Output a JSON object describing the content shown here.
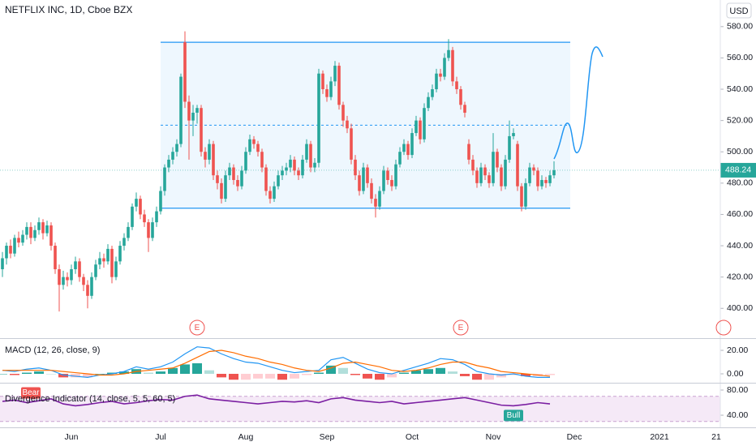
{
  "header": {
    "title": "NETFLIX INC, 1D, Cboe BZX",
    "currency": "USD"
  },
  "chart_data": [
    {
      "type": "candlestick",
      "ohlc": [
        [
          425,
          436,
          420,
          432
        ],
        [
          432,
          442,
          428,
          440
        ],
        [
          440,
          444,
          432,
          435
        ],
        [
          435,
          447,
          433,
          445
        ],
        [
          445,
          449,
          439,
          442
        ],
        [
          442,
          450,
          440,
          447
        ],
        [
          447,
          455,
          444,
          452
        ],
        [
          452,
          455,
          441,
          445
        ],
        [
          445,
          453,
          443,
          450
        ],
        [
          450,
          458,
          447,
          455
        ],
        [
          455,
          457,
          444,
          448
        ],
        [
          448,
          456,
          446,
          453
        ],
        [
          453,
          455,
          437,
          440
        ],
        [
          440,
          442,
          422,
          425
        ],
        [
          425,
          428,
          398,
          415
        ],
        [
          415,
          424,
          412,
          420
        ],
        [
          420,
          423,
          414,
          418
        ],
        [
          418,
          428,
          415,
          425
        ],
        [
          425,
          433,
          422,
          430
        ],
        [
          430,
          432,
          417,
          420
        ],
        [
          420,
          422,
          411,
          415
        ],
        [
          415,
          418,
          400,
          408
        ],
        [
          408,
          423,
          406,
          420
        ],
        [
          420,
          431,
          418,
          428
        ],
        [
          428,
          436,
          425,
          432
        ],
        [
          432,
          435,
          426,
          430
        ],
        [
          430,
          441,
          428,
          438
        ],
        [
          438,
          440,
          416,
          420
        ],
        [
          420,
          433,
          418,
          430
        ],
        [
          430,
          443,
          428,
          440
        ],
        [
          440,
          448,
          437,
          445
        ],
        [
          445,
          455,
          443,
          452
        ],
        [
          452,
          467,
          450,
          465
        ],
        [
          465,
          474,
          462,
          470
        ],
        [
          470,
          472,
          457,
          460
        ],
        [
          460,
          463,
          452,
          455
        ],
        [
          455,
          457,
          436,
          445
        ],
        [
          445,
          458,
          443,
          455
        ],
        [
          455,
          465,
          452,
          462
        ],
        [
          462,
          478,
          460,
          475
        ],
        [
          475,
          492,
          472,
          490
        ],
        [
          490,
          498,
          487,
          495
        ],
        [
          495,
          503,
          492,
          500
        ],
        [
          500,
          508,
          497,
          505
        ],
        [
          505,
          550,
          503,
          548
        ],
        [
          570,
          577,
          528,
          532
        ],
        [
          532,
          536,
          495,
          520
        ],
        [
          520,
          530,
          510,
          525
        ],
        [
          525,
          530,
          518,
          528
        ],
        [
          528,
          530,
          497,
          500
        ],
        [
          500,
          503,
          490,
          495
        ],
        [
          495,
          508,
          492,
          505
        ],
        [
          505,
          507,
          482,
          485
        ],
        [
          485,
          488,
          476,
          480
        ],
        [
          480,
          483,
          467,
          470
        ],
        [
          470,
          488,
          468,
          485
        ],
        [
          485,
          493,
          482,
          490
        ],
        [
          490,
          492,
          479,
          482
        ],
        [
          482,
          485,
          475,
          478
        ],
        [
          478,
          491,
          476,
          488
        ],
        [
          488,
          503,
          486,
          500
        ],
        [
          500,
          511,
          498,
          508
        ],
        [
          508,
          510,
          502,
          505
        ],
        [
          505,
          507,
          497,
          500
        ],
        [
          500,
          502,
          487,
          490
        ],
        [
          490,
          492,
          472,
          475
        ],
        [
          475,
          478,
          467,
          470
        ],
        [
          470,
          481,
          468,
          478
        ],
        [
          478,
          488,
          476,
          485
        ],
        [
          485,
          491,
          482,
          488
        ],
        [
          488,
          493,
          485,
          490
        ],
        [
          490,
          498,
          487,
          495
        ],
        [
          495,
          497,
          485,
          488
        ],
        [
          488,
          490,
          482,
          485
        ],
        [
          485,
          498,
          483,
          495
        ],
        [
          495,
          508,
          493,
          505
        ],
        [
          505,
          507,
          487,
          490
        ],
        [
          490,
          496,
          487,
          493
        ],
        [
          493,
          553,
          490,
          550
        ],
        [
          550,
          552,
          537,
          540
        ],
        [
          540,
          543,
          532,
          535
        ],
        [
          535,
          548,
          533,
          545
        ],
        [
          545,
          558,
          542,
          555
        ],
        [
          555,
          557,
          527,
          530
        ],
        [
          530,
          532,
          516,
          520
        ],
        [
          520,
          523,
          512,
          515
        ],
        [
          515,
          518,
          492,
          495
        ],
        [
          495,
          498,
          482,
          485
        ],
        [
          485,
          488,
          472,
          475
        ],
        [
          475,
          493,
          473,
          490
        ],
        [
          490,
          492,
          477,
          480
        ],
        [
          480,
          483,
          467,
          470
        ],
        [
          470,
          473,
          458,
          465
        ],
        [
          465,
          478,
          463,
          475
        ],
        [
          475,
          491,
          473,
          488
        ],
        [
          488,
          490,
          479,
          482
        ],
        [
          482,
          485,
          475,
          478
        ],
        [
          478,
          495,
          476,
          492
        ],
        [
          492,
          503,
          490,
          500
        ],
        [
          500,
          508,
          498,
          505
        ],
        [
          505,
          507,
          495,
          498
        ],
        [
          498,
          515,
          496,
          512
        ],
        [
          512,
          523,
          510,
          520
        ],
        [
          520,
          522,
          505,
          508
        ],
        [
          508,
          531,
          506,
          528
        ],
        [
          528,
          538,
          526,
          535
        ],
        [
          535,
          543,
          533,
          540
        ],
        [
          540,
          553,
          538,
          550
        ],
        [
          550,
          553,
          545,
          548
        ],
        [
          548,
          563,
          546,
          560
        ],
        [
          560,
          572,
          558,
          565
        ],
        [
          565,
          567,
          542,
          545
        ],
        [
          545,
          548,
          537,
          540
        ],
        [
          540,
          542,
          527,
          530
        ],
        [
          530,
          532,
          522,
          525
        ],
        [
          505,
          508,
          492,
          495
        ],
        [
          495,
          498,
          485,
          488
        ],
        [
          488,
          490,
          477,
          480
        ],
        [
          480,
          493,
          478,
          490
        ],
        [
          490,
          492,
          482,
          485
        ],
        [
          485,
          487,
          477,
          480
        ],
        [
          480,
          512,
          478,
          500
        ],
        [
          500,
          502,
          487,
          490
        ],
        [
          490,
          492,
          475,
          478
        ],
        [
          478,
          498,
          476,
          495
        ],
        [
          495,
          520,
          493,
          510
        ],
        [
          510,
          515,
          508,
          512
        ],
        [
          505,
          507,
          475,
          478
        ],
        [
          478,
          480,
          462,
          465
        ],
        [
          465,
          483,
          463,
          480
        ],
        [
          480,
          493,
          478,
          490
        ],
        [
          490,
          492,
          485,
          488
        ],
        [
          488,
          490,
          475,
          478
        ],
        [
          478,
          485,
          476,
          482
        ],
        [
          482,
          484,
          477,
          480
        ],
        [
          480,
          488,
          478,
          485
        ],
        [
          485,
          494,
          483,
          488.24
        ]
      ],
      "up_color": "#26a69a",
      "down_color": "#ef5350",
      "xlim": [
        -0.6,
        177
      ],
      "ylim": [
        382,
        597
      ],
      "yticks": [
        {
          "value": 400,
          "label": "400.00"
        },
        {
          "value": 420,
          "label": "420.00"
        },
        {
          "value": 440,
          "label": "440.00"
        },
        {
          "value": 460,
          "label": "460.00"
        },
        {
          "value": 480,
          "label": "480.00"
        },
        {
          "value": 500,
          "label": "500.00"
        },
        {
          "value": 520,
          "label": "520.00"
        },
        {
          "value": 540,
          "label": "540.00"
        },
        {
          "value": 560,
          "label": "560.00"
        },
        {
          "value": 580,
          "label": "580.00"
        }
      ],
      "xticks": [
        {
          "value": 17,
          "label": "Jun"
        },
        {
          "value": 39,
          "label": "Jul"
        },
        {
          "value": 60,
          "label": "Aug"
        },
        {
          "value": 80,
          "label": "Sep"
        },
        {
          "value": 101,
          "label": "Oct"
        },
        {
          "value": 121,
          "label": "Nov"
        },
        {
          "value": 141,
          "label": "Dec"
        },
        {
          "value": 162,
          "label": "2021"
        },
        {
          "value": 176,
          "label": "21"
        }
      ],
      "last_price": 488.24,
      "channel": {
        "start": 39,
        "end": 140,
        "top": 570,
        "bottom": 464,
        "mid": 517,
        "color": "#2196f3"
      },
      "events": [
        {
          "x": 48,
          "label": "E"
        },
        {
          "x": 113,
          "label": "E"
        }
      ]
    },
    {
      "type": "macd",
      "title": "MACD (12, 26, close, 9)",
      "x": [
        0,
        3,
        6,
        9,
        12,
        15,
        18,
        21,
        24,
        27,
        30,
        33,
        36,
        39,
        42,
        45,
        48,
        51,
        54,
        57,
        60,
        63,
        66,
        69,
        72,
        75,
        78,
        81,
        84,
        87,
        90,
        93,
        96,
        99,
        102,
        105,
        108,
        111,
        114,
        117,
        120,
        123,
        126,
        129,
        132,
        135
      ],
      "macd": [
        3,
        2,
        4,
        5,
        3,
        -1,
        -2,
        -3,
        -1,
        0,
        2,
        6,
        4,
        6,
        10,
        17,
        23,
        22,
        17,
        13,
        10,
        9,
        6,
        3,
        1,
        2,
        3,
        12,
        14,
        9,
        4,
        1,
        0,
        3,
        6,
        9,
        13,
        12,
        8,
        2,
        0,
        -1,
        0,
        -2,
        -3,
        -3
      ],
      "signal": [
        3,
        3,
        3,
        3,
        3,
        2,
        1,
        0,
        -1,
        -1,
        0,
        2,
        3,
        4,
        5,
        9,
        14,
        19,
        20,
        18,
        15,
        13,
        10,
        8,
        5,
        3,
        2,
        5,
        9,
        10,
        8,
        6,
        3,
        2,
        3,
        5,
        8,
        10,
        10,
        7,
        5,
        2,
        1,
        0,
        -1,
        -2
      ],
      "histogram": [
        0,
        -1,
        1,
        2,
        0,
        -3,
        -3,
        -3,
        0,
        1,
        2,
        4,
        1,
        2,
        5,
        8,
        9,
        3,
        -3,
        -5,
        -5,
        -4,
        -4,
        -5,
        -4,
        -1,
        1,
        7,
        5,
        -1,
        -4,
        -5,
        -3,
        1,
        3,
        4,
        5,
        2,
        -2,
        -5,
        -5,
        -3,
        -1,
        -2,
        -2,
        -1
      ],
      "macd_color": "#2196f3",
      "signal_color": "#ff6d00",
      "ylim": [
        -6.2,
        28.3
      ],
      "yticks": [
        {
          "value": 20,
          "label": "20.00"
        },
        {
          "value": 0,
          "label": "0.00"
        }
      ]
    },
    {
      "type": "oscillator",
      "title": "Divergence Indicator (14, close, 5, 5, 60, 5)",
      "x": [
        0,
        3,
        6,
        9,
        12,
        15,
        18,
        21,
        24,
        27,
        30,
        33,
        36,
        39,
        42,
        45,
        48,
        51,
        54,
        57,
        60,
        63,
        66,
        69,
        72,
        75,
        78,
        81,
        84,
        87,
        90,
        93,
        96,
        99,
        102,
        105,
        108,
        111,
        114,
        117,
        120,
        123,
        126,
        129,
        132,
        135
      ],
      "values": [
        62,
        64,
        60,
        63,
        66,
        58,
        55,
        57,
        60,
        62,
        58,
        60,
        63,
        65,
        64,
        70,
        72,
        66,
        64,
        62,
        60,
        58,
        60,
        62,
        61,
        63,
        60,
        66,
        68,
        64,
        62,
        60,
        62,
        58,
        60,
        62,
        64,
        66,
        68,
        64,
        60,
        56,
        55,
        57,
        60,
        58
      ],
      "color": "#7b1fa2",
      "band": [
        30,
        70
      ],
      "ylim": [
        22,
        89
      ],
      "yticks": [
        {
          "value": 80,
          "label": "80.00"
        },
        {
          "value": 40,
          "label": "40.00"
        }
      ],
      "signals": [
        {
          "x": 7,
          "label": "Bear",
          "color": "#ef5350"
        },
        {
          "x": 126,
          "label": "Bull",
          "color": "#26a69a"
        }
      ]
    }
  ]
}
